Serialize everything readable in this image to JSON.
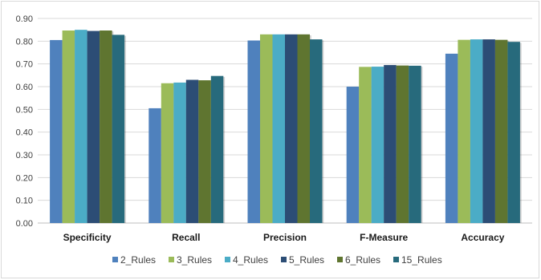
{
  "chart_data": {
    "type": "bar",
    "title": "",
    "xlabel": "",
    "ylabel": "",
    "ylim": [
      0,
      0.9
    ],
    "y_ticks": [
      "0.00",
      "0.10",
      "0.20",
      "0.30",
      "0.40",
      "0.50",
      "0.60",
      "0.70",
      "0.80",
      "0.90"
    ],
    "grid": true,
    "legend_position": "bottom",
    "categories": [
      "Specificity",
      "Recall",
      "Precision",
      "F-Measure",
      "Accuracy"
    ],
    "series": [
      {
        "name": "2_Rules",
        "color": "#4f81bd",
        "values": [
          0.805,
          0.505,
          0.803,
          0.6,
          0.745
        ]
      },
      {
        "name": "3_Rules",
        "color": "#9bbb59",
        "values": [
          0.847,
          0.615,
          0.83,
          0.687,
          0.806
        ]
      },
      {
        "name": "4_Rules",
        "color": "#4bacc6",
        "values": [
          0.85,
          0.618,
          0.83,
          0.688,
          0.808
        ]
      },
      {
        "name": "5_Rules",
        "color": "#2c4d75",
        "values": [
          0.845,
          0.63,
          0.83,
          0.695,
          0.808
        ]
      },
      {
        "name": "6_Rules",
        "color": "#5f7530",
        "values": [
          0.847,
          0.628,
          0.83,
          0.693,
          0.806
        ]
      },
      {
        "name": "15_Rules",
        "color": "#276a7c",
        "values": [
          0.828,
          0.647,
          0.808,
          0.692,
          0.797
        ]
      }
    ]
  }
}
